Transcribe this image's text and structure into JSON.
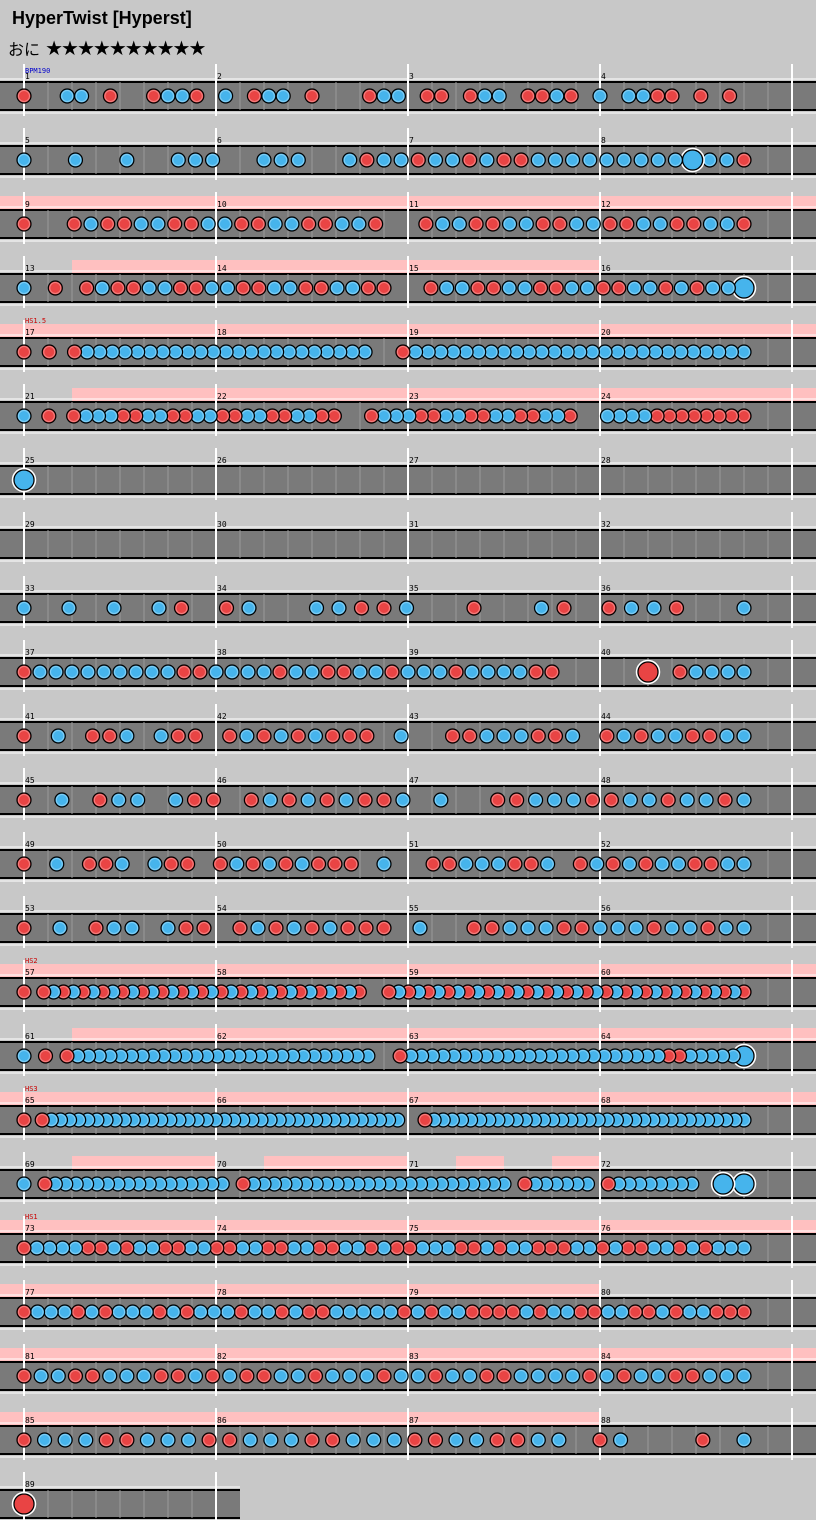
{
  "song_title": "HyperTwist [Hyperst]",
  "difficulty": {
    "label": "おに",
    "stars": "★★★★★★★★★★"
  },
  "bpm_label": "BPM190",
  "colors": {
    "don": "#e94444",
    "ka": "#46b4ec",
    "lane": "#7a7a7a",
    "gogo": "#ffc0c0"
  },
  "rows": [
    {
      "bars": [
        "1",
        "2",
        "3",
        "4"
      ],
      "notes": "r..bb.r..rbbr.b.rbb.r...rbb.rr.rbb.rrbr.b.bbrr.r.r.",
      "gogo": []
    },
    {
      "bars": [
        "5",
        "6",
        "7",
        "8"
      ],
      "notes": "b..b..b..bbb..bbb..brbbrbbrbrrbbbbbbbbbBbbr",
      "gogo": []
    },
    {
      "bars": [
        "9",
        "10",
        "11",
        "12"
      ],
      "notes": "r..rbrrbbrrbbrrbbrrbbr..rbbrrbbrrbbrrbbrrbbr",
      "gogo": [
        [
          0,
          4
        ]
      ]
    },
    {
      "bars": [
        "13",
        "14",
        "15",
        "16"
      ],
      "notes": "b.r.rbrrbbrrbbrrbbrrbbrr..rbbrrbbrrbbrrbbrbrbbB",
      "gogo": [
        [
          0.25,
          3
        ]
      ]
    },
    {
      "bars": [
        "17",
        "18",
        "19",
        "20"
      ],
      "notes": "r.r.rbbbbbbbbbbbbbbbbbbbbbbb..rbbbbbbbbbbbbbbbbbbbbbbbbbbb",
      "gogo": [
        [
          0,
          4
        ]
      ],
      "hs": "HS1.5"
    },
    {
      "bars": [
        "21",
        "22",
        "23",
        "24"
      ],
      "notes": "b.r.rbbbrrbbrrbbrrbbrrbbrr..rbbbrrbbrrbbrrbbr..bbbbrrrrrrrr",
      "gogo": [
        [
          0.25,
          4
        ]
      ]
    },
    {
      "bars": [
        "25",
        "26",
        "27",
        "28"
      ],
      "notes": "B",
      "gogo": []
    },
    {
      "bars": [
        "29",
        "30",
        "31",
        "32"
      ],
      "notes": "",
      "gogo": []
    },
    {
      "bars": [
        "33",
        "34",
        "35",
        "36"
      ],
      "notes": "b.b.b.br.rb..bbrrb..r..br.rbbr..b",
      "gogo": []
    },
    {
      "bars": [
        "37",
        "38",
        "39",
        "40"
      ],
      "notes": "rbbbbbbbbbrrbbbbrbbrrbbrbbbrbbbbrr.....R.rbbbb",
      "gogo": []
    },
    {
      "bars": [
        "41",
        "42",
        "43",
        "44"
      ],
      "notes": "r.b.rrb.brr.rbrbrbrrr.b..rrbbbrrb.rbrbbrrbb",
      "gogo": []
    },
    {
      "bars": [
        "45",
        "46",
        "47",
        "48"
      ],
      "notes": "r.b.rbb.brr.rbrbrbrrb.b..rrbbbrrbbrbbrb",
      "gogo": []
    },
    {
      "bars": [
        "49",
        "50",
        "51",
        "52"
      ],
      "notes": "r.b.rrb.brr.rbrbrbrrr.b..rrbbbrrb.rbrbrbbrrbb",
      "gogo": []
    },
    {
      "bars": [
        "53",
        "54",
        "55",
        "56"
      ],
      "notes": "r.b.rbb.brr.rbrbrbrrr.b..rrbbbrrbbbrbbrbb",
      "gogo": []
    },
    {
      "bars": [
        "57",
        "58",
        "59",
        "60"
      ],
      "notes": "r.rbrbrbrbrbrbrbrbrbrbrbrbrbrbrbrbr..rbrbrbrbrbrbrbrbrbrbrbrbrbrbrbrbrbrbr",
      "gogo": [
        [
          0,
          4
        ]
      ],
      "hs": "HS2"
    },
    {
      "bars": [
        "61",
        "62",
        "63",
        "64"
      ],
      "notes": "b.r.rbbbbbbbbbbbbbbbbbbbbbbbbbbbb..rbbbbbbbbbbbbbbbbbbbbbbbbrrbbbbbB",
      "gogo": [
        [
          0.25,
          4
        ]
      ]
    },
    {
      "bars": [
        "65",
        "66",
        "67",
        "68"
      ],
      "notes": "r.rbbbbbbbbbbbbbbbbbbbbbbbbbbbbbbbbbbbbbbb..rbbbbbbbbbbbbbbbbbbbbbbbbbbbbbbbbbbb",
      "gogo": [
        [
          0,
          4
        ]
      ],
      "hs": "HS3"
    },
    {
      "bars": [
        "69",
        "70",
        "71",
        "72"
      ],
      "notes": "b.rbbbbbbbbbbbbbbbbb.rbbbbbbbbbbbbbbbbbbbbbbbbb.rbbbbbb.rbbbbbbbb..B.B",
      "gogo": [
        [
          0.25,
          1
        ],
        [
          1.25,
          2
        ],
        [
          2.25,
          2.5
        ],
        [
          2.75,
          3
        ]
      ]
    },
    {
      "bars": [
        "73",
        "74",
        "75",
        "76"
      ],
      "notes": "rbbbbrrbrbbrrbbrrbbrrbbrrbbrbrrbbbrrbrbbrrrbbrbrrbbrbrbbb",
      "gogo": [
        [
          0,
          4
        ]
      ],
      "hs": "HS1"
    },
    {
      "bars": [
        "77",
        "78",
        "79",
        "80"
      ],
      "notes": "rbbbrbrbbbrbrbbbrbbrbrrbbbbbrbrbbrrrrbrbbrrbbrrbrbbrrr",
      "gogo": [
        [
          0,
          3
        ]
      ]
    },
    {
      "bars": [
        "81",
        "82",
        "83",
        "84"
      ],
      "notes": "rbbrrbbbrrbrbrrbbrbbbrbbrbbrrbbbbrbrbbrrbbb",
      "gogo": [
        [
          0,
          4
        ]
      ]
    },
    {
      "bars": [
        "85",
        "86",
        "87",
        "88"
      ],
      "notes": "rbbbrrbbbrrbbbrrbbbrrbbrrbb.rb...r.b",
      "gogo": [
        [
          0,
          3
        ]
      ]
    },
    {
      "bars": [
        "89"
      ],
      "notes": "R",
      "gogo": []
    }
  ]
}
